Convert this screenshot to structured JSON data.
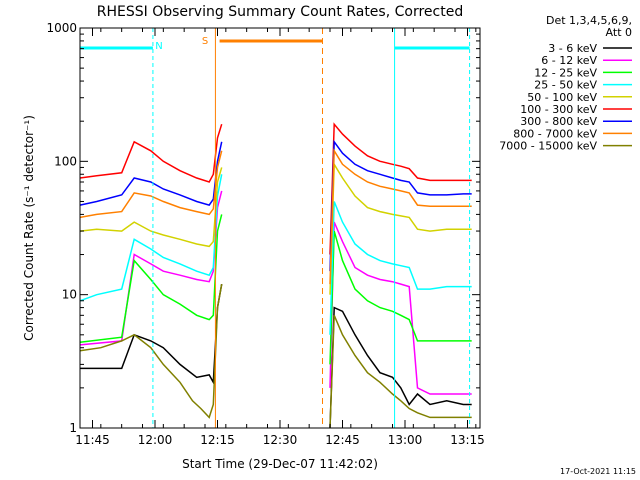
{
  "chart_data": {
    "type": "line",
    "title": "RHESSI Observing Summary Count Rates, Corrected",
    "xlabel": "Start Time (29-Dec-07 11:42:02)",
    "ylabel": "Corrected Count Rate (s⁻¹ detector⁻¹)",
    "y_scale": "log",
    "ylim": [
      1,
      1000
    ],
    "xlim_minutes": [
      0,
      96
    ],
    "x_ticks": [
      {
        "label": "11:45",
        "minutes": 3
      },
      {
        "label": "12:00",
        "minutes": 18
      },
      {
        "label": "12:15",
        "minutes": 33
      },
      {
        "label": "12:30",
        "minutes": 48
      },
      {
        "label": "12:45",
        "minutes": 63
      },
      {
        "label": "13:00",
        "minutes": 78
      },
      {
        "label": "13:15",
        "minutes": 93
      }
    ],
    "y_ticks": [
      {
        "label": "1",
        "value": 1
      },
      {
        "label": "10",
        "value": 10
      },
      {
        "label": "100",
        "value": 100
      },
      {
        "label": "1000",
        "value": 1000
      }
    ],
    "legend_header": [
      "Det 1,3,4,5,6,9,",
      "Att 0"
    ],
    "legend_position": "right",
    "series": [
      {
        "name": "3 - 6 keV",
        "color": "#000000",
        "points": [
          [
            0,
            2.8
          ],
          [
            10,
            2.8
          ],
          [
            13,
            5
          ],
          [
            17,
            4.5
          ],
          [
            20,
            4
          ],
          [
            24,
            3
          ],
          [
            28,
            2.4
          ],
          [
            31,
            2.5
          ],
          [
            32,
            2.2
          ],
          [
            33,
            8
          ],
          [
            34,
            12
          ],
          [
            60,
            1
          ],
          [
            61,
            8
          ],
          [
            63,
            7.5
          ],
          [
            66,
            5
          ],
          [
            69,
            3.5
          ],
          [
            72,
            2.6
          ],
          [
            75,
            2.4
          ],
          [
            77,
            2
          ],
          [
            79,
            1.5
          ],
          [
            81,
            1.8
          ],
          [
            84,
            1.5
          ],
          [
            88,
            1.6
          ],
          [
            92,
            1.5
          ],
          [
            94,
            1.5
          ]
        ]
      },
      {
        "name": "6 - 12 keV",
        "color": "#ff00ff",
        "points": [
          [
            0,
            4.2
          ],
          [
            10,
            4.5
          ],
          [
            13,
            20
          ],
          [
            17,
            17
          ],
          [
            20,
            15
          ],
          [
            24,
            14
          ],
          [
            28,
            13
          ],
          [
            31,
            12.5
          ],
          [
            32,
            15
          ],
          [
            33,
            45
          ],
          [
            34,
            60
          ],
          [
            60,
            2
          ],
          [
            61,
            35
          ],
          [
            63,
            25
          ],
          [
            66,
            16
          ],
          [
            69,
            14
          ],
          [
            72,
            13
          ],
          [
            75,
            12.5
          ],
          [
            77,
            12
          ],
          [
            79,
            11.5
          ],
          [
            81,
            2
          ],
          [
            84,
            1.8
          ],
          [
            88,
            1.8
          ],
          [
            92,
            1.8
          ],
          [
            94,
            1.8
          ]
        ]
      },
      {
        "name": "12 - 25 keV",
        "color": "#00ff00",
        "points": [
          [
            0,
            4.4
          ],
          [
            10,
            4.8
          ],
          [
            13,
            18
          ],
          [
            17,
            13
          ],
          [
            20,
            10
          ],
          [
            24,
            8.5
          ],
          [
            28,
            7
          ],
          [
            31,
            6.5
          ],
          [
            32,
            7
          ],
          [
            33,
            30
          ],
          [
            34,
            40
          ],
          [
            60,
            3
          ],
          [
            61,
            30
          ],
          [
            63,
            18
          ],
          [
            66,
            11
          ],
          [
            69,
            9
          ],
          [
            72,
            8
          ],
          [
            75,
            7.5
          ],
          [
            77,
            7
          ],
          [
            79,
            6.5
          ],
          [
            81,
            4.5
          ],
          [
            84,
            4.5
          ],
          [
            88,
            4.5
          ],
          [
            92,
            4.5
          ],
          [
            94,
            4.5
          ]
        ]
      },
      {
        "name": "25 - 50 keV",
        "color": "#00ffff",
        "points": [
          [
            0,
            9
          ],
          [
            4,
            10
          ],
          [
            10,
            11
          ],
          [
            13,
            26
          ],
          [
            17,
            22
          ],
          [
            20,
            19
          ],
          [
            24,
            17
          ],
          [
            28,
            15
          ],
          [
            31,
            14
          ],
          [
            32,
            16
          ],
          [
            33,
            55
          ],
          [
            34,
            80
          ],
          [
            60,
            5
          ],
          [
            61,
            50
          ],
          [
            63,
            35
          ],
          [
            66,
            24
          ],
          [
            69,
            20
          ],
          [
            72,
            18
          ],
          [
            75,
            17
          ],
          [
            77,
            16.5
          ],
          [
            79,
            16
          ],
          [
            81,
            11
          ],
          [
            84,
            11
          ],
          [
            88,
            11.5
          ],
          [
            92,
            11.5
          ],
          [
            94,
            11.5
          ]
        ]
      },
      {
        "name": "50 - 100 keV",
        "color": "#d2d200",
        "points": [
          [
            0,
            30
          ],
          [
            4,
            31
          ],
          [
            10,
            30
          ],
          [
            13,
            35
          ],
          [
            17,
            30
          ],
          [
            20,
            28
          ],
          [
            24,
            26
          ],
          [
            28,
            24
          ],
          [
            31,
            23
          ],
          [
            32,
            25
          ],
          [
            33,
            70
          ],
          [
            34,
            90
          ],
          [
            60,
            10
          ],
          [
            61,
            95
          ],
          [
            63,
            75
          ],
          [
            66,
            55
          ],
          [
            69,
            45
          ],
          [
            72,
            42
          ],
          [
            75,
            40
          ],
          [
            77,
            39
          ],
          [
            79,
            38
          ],
          [
            81,
            31
          ],
          [
            84,
            30
          ],
          [
            88,
            31
          ],
          [
            92,
            31
          ],
          [
            94,
            31
          ]
        ]
      },
      {
        "name": "100 - 300 keV",
        "color": "#ff0000",
        "points": [
          [
            0,
            75
          ],
          [
            4,
            78
          ],
          [
            10,
            82
          ],
          [
            13,
            140
          ],
          [
            17,
            120
          ],
          [
            20,
            100
          ],
          [
            24,
            85
          ],
          [
            28,
            75
          ],
          [
            31,
            70
          ],
          [
            32,
            80
          ],
          [
            33,
            150
          ],
          [
            34,
            190
          ],
          [
            60,
            20
          ],
          [
            61,
            190
          ],
          [
            63,
            160
          ],
          [
            66,
            130
          ],
          [
            69,
            110
          ],
          [
            72,
            100
          ],
          [
            75,
            95
          ],
          [
            77,
            92
          ],
          [
            79,
            88
          ],
          [
            81,
            75
          ],
          [
            84,
            72
          ],
          [
            88,
            72
          ],
          [
            92,
            72
          ],
          [
            94,
            72
          ]
        ]
      },
      {
        "name": "300 - 800 keV",
        "color": "#0000ff",
        "points": [
          [
            0,
            47
          ],
          [
            4,
            50
          ],
          [
            10,
            56
          ],
          [
            13,
            75
          ],
          [
            17,
            70
          ],
          [
            20,
            62
          ],
          [
            24,
            56
          ],
          [
            28,
            50
          ],
          [
            31,
            47
          ],
          [
            32,
            52
          ],
          [
            33,
            100
          ],
          [
            34,
            140
          ],
          [
            60,
            15
          ],
          [
            61,
            140
          ],
          [
            63,
            115
          ],
          [
            66,
            95
          ],
          [
            69,
            85
          ],
          [
            72,
            80
          ],
          [
            75,
            75
          ],
          [
            77,
            72
          ],
          [
            79,
            70
          ],
          [
            81,
            58
          ],
          [
            84,
            56
          ],
          [
            88,
            56
          ],
          [
            92,
            57
          ],
          [
            94,
            57
          ]
        ]
      },
      {
        "name": "800 - 7000 keV",
        "color": "#ff8000",
        "points": [
          [
            0,
            38
          ],
          [
            4,
            40
          ],
          [
            10,
            42
          ],
          [
            13,
            58
          ],
          [
            17,
            55
          ],
          [
            20,
            50
          ],
          [
            24,
            45
          ],
          [
            28,
            42
          ],
          [
            31,
            40
          ],
          [
            32,
            44
          ],
          [
            33,
            90
          ],
          [
            34,
            120
          ],
          [
            60,
            12
          ],
          [
            61,
            120
          ],
          [
            63,
            95
          ],
          [
            66,
            80
          ],
          [
            69,
            70
          ],
          [
            72,
            65
          ],
          [
            75,
            62
          ],
          [
            77,
            60
          ],
          [
            79,
            58
          ],
          [
            81,
            47
          ],
          [
            84,
            46
          ],
          [
            88,
            46
          ],
          [
            92,
            46
          ],
          [
            94,
            46
          ]
        ]
      },
      {
        "name": "7000 - 15000 keV",
        "color": "#808000",
        "points": [
          [
            0,
            3.8
          ],
          [
            5,
            4
          ],
          [
            10,
            4.5
          ],
          [
            13,
            5
          ],
          [
            17,
            4
          ],
          [
            20,
            3
          ],
          [
            24,
            2.2
          ],
          [
            27,
            1.6
          ],
          [
            29,
            1.4
          ],
          [
            31,
            1.2
          ],
          [
            32,
            1.5
          ],
          [
            33,
            8
          ],
          [
            34,
            12
          ],
          [
            60,
            1
          ],
          [
            61,
            7
          ],
          [
            63,
            5
          ],
          [
            66,
            3.5
          ],
          [
            69,
            2.6
          ],
          [
            72,
            2.2
          ],
          [
            75,
            1.8
          ],
          [
            77,
            1.6
          ],
          [
            79,
            1.4
          ],
          [
            81,
            1.3
          ],
          [
            84,
            1.2
          ],
          [
            88,
            1.2
          ],
          [
            92,
            1.2
          ],
          [
            94,
            1.2
          ]
        ]
      }
    ],
    "annotations": [
      {
        "label": "N",
        "color": "#00ffff"
      },
      {
        "label": "S",
        "color": "#ff8000"
      }
    ],
    "timestamp": "17-Oct-2021 11:15"
  }
}
